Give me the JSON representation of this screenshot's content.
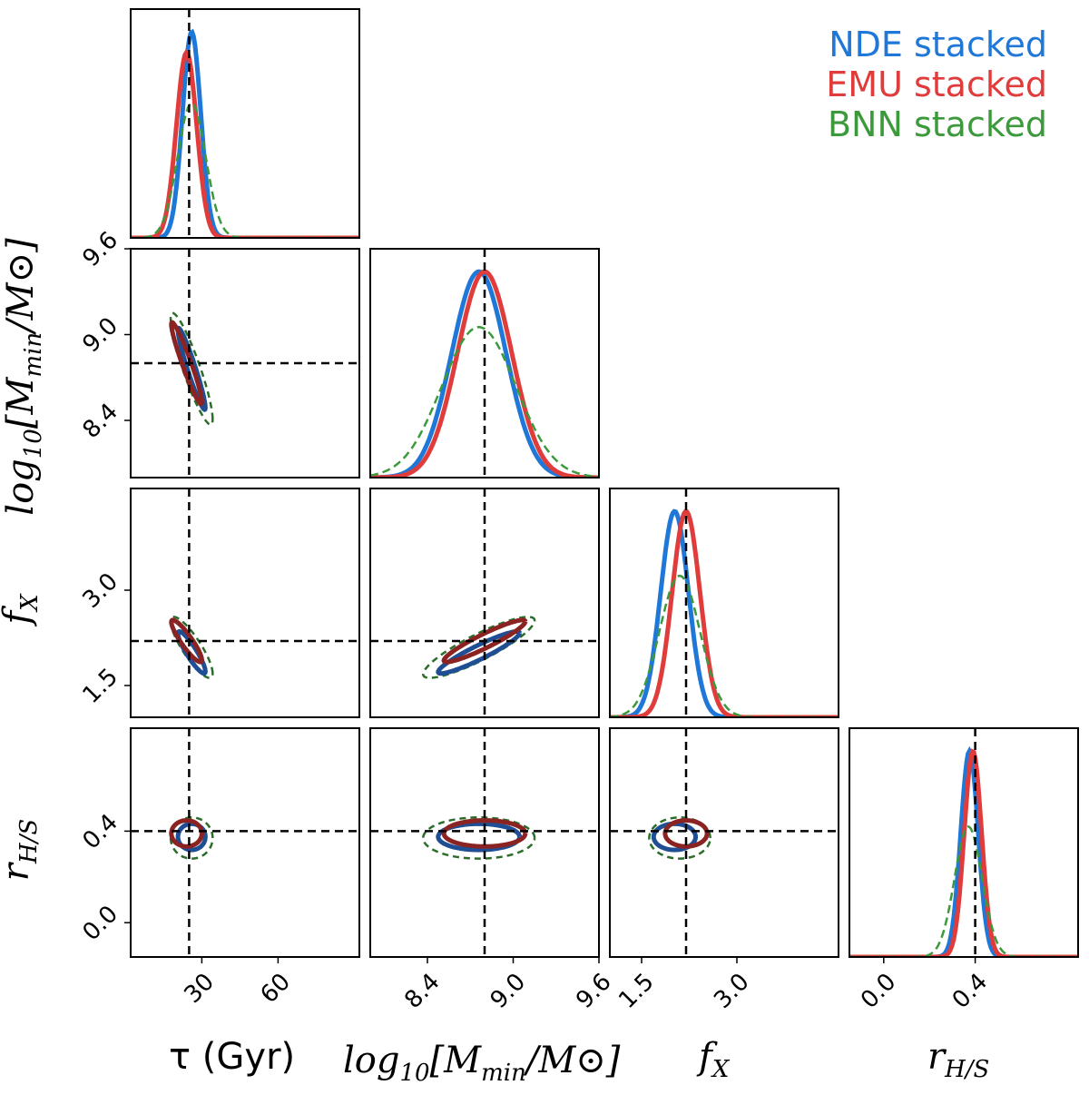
{
  "chart_data": {
    "type": "corner",
    "parameters": [
      {
        "key": "tau",
        "label": "τ (Gyr)",
        "truth": 25,
        "range": [
          2,
          92
        ],
        "ticks": [
          30,
          60
        ]
      },
      {
        "key": "logM",
        "label": "log10[Mmin/M⊙]",
        "truth": 8.8,
        "range": [
          8.0,
          9.6
        ],
        "ticks": [
          8.4,
          9.0,
          9.6
        ]
      },
      {
        "key": "fX",
        "label": "fX",
        "truth": 2.2,
        "range": [
          1.0,
          4.6
        ],
        "ticks": [
          1.5,
          3.0
        ]
      },
      {
        "key": "rHS",
        "label": "rH/S",
        "truth": 0.4,
        "range": [
          -0.15,
          0.85
        ],
        "ticks": [
          0.0,
          0.4
        ]
      }
    ],
    "axis_labels": {
      "tau": {
        "main": "τ (Gyr)"
      },
      "logM": {
        "pre": "log",
        "sub": "10",
        "mid": "[M",
        "sub2": "min",
        "post": "/M⊙]"
      },
      "fX": {
        "pre": "f",
        "sub": "X"
      },
      "rHS": {
        "pre": "r",
        "sub": "H/S"
      }
    },
    "legend": {
      "placement": "top-right",
      "entries": [
        {
          "label": "NDE stacked",
          "color": "#1f77d8"
        },
        {
          "label": "EMU stacked",
          "color": "#e03c3c"
        },
        {
          "label": "BNN stacked",
          "color": "#3c9a3c"
        }
      ]
    },
    "series": [
      {
        "name": "NDE stacked",
        "color": "#1f77d8",
        "contour_color": "#1f4e94",
        "style": "solid",
        "mean": {
          "tau": 26.0,
          "logM": 8.76,
          "fX": 2.02,
          "rHS": 0.375
        },
        "sigma": {
          "tau": 3.6,
          "logM": 0.19,
          "fX": 0.22,
          "rHS": 0.038
        },
        "corr": {
          "tau|logM": -0.95,
          "tau|fX": -0.9,
          "logM|fX": 0.93,
          "tau|rHS": 0.0,
          "logM|rHS": 0.0,
          "fX|rHS": 0.0
        }
      },
      {
        "name": "EMU stacked",
        "color": "#e03c3c",
        "contour_color": "#8c2323",
        "style": "solid",
        "mean": {
          "tau": 24.0,
          "logM": 8.8,
          "fX": 2.2,
          "rHS": 0.39
        },
        "sigma": {
          "tau": 4.0,
          "logM": 0.19,
          "fX": 0.22,
          "rHS": 0.038
        },
        "corr": {
          "tau|logM": -0.95,
          "tau|fX": -0.9,
          "logM|fX": 0.93,
          "tau|rHS": 0.0,
          "logM|rHS": 0.0,
          "fX|rHS": 0.0
        }
      },
      {
        "name": "BNN stacked",
        "color": "#3c9a3c",
        "contour_color": "#2a6e2a",
        "style": "dashed",
        "mean": {
          "tau": 26.0,
          "logM": 8.76,
          "fX": 2.1,
          "rHS": 0.37
        },
        "sigma": {
          "tau": 5.5,
          "logM": 0.26,
          "fX": 0.32,
          "rHS": 0.06
        },
        "corr": {
          "tau|logM": -0.9,
          "tau|fX": -0.85,
          "logM|fX": 0.88,
          "tau|rHS": 0.0,
          "logM|rHS": 0.0,
          "fX|rHS": 0.0
        }
      }
    ]
  }
}
